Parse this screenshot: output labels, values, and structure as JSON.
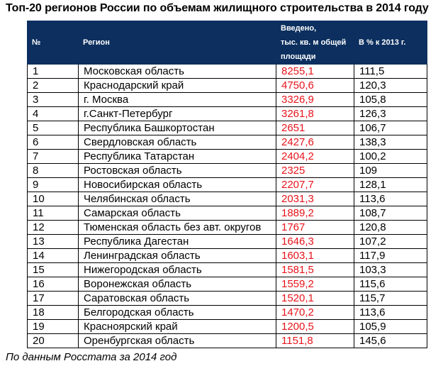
{
  "title": "Топ-20 регионов России по объемам жилищного строительства в 2014 году",
  "note": "По данным Росстата за 2014 год",
  "colors": {
    "header_bg": "#0c2f5f",
    "header_text": "#ffffff",
    "value_text": "#e8141b"
  },
  "chart_data": {
    "type": "table",
    "title": "Топ-20 регионов России по объемам жилищного строительства в 2014 году",
    "columns": [
      "№",
      "Регион",
      "Введено, тыс. кв. м общей площади",
      "В % к 2013 г."
    ],
    "header_lines": {
      "c2": [
        "Введено,",
        "тыс. кв. м общей",
        "площади"
      ]
    },
    "rows": [
      [
        "1",
        "Московская область",
        "8255,1",
        "111,5"
      ],
      [
        "2",
        "Краснодарский край",
        "4750,6",
        "120,3"
      ],
      [
        "3",
        "г. Москва",
        "3326,9",
        "105,8"
      ],
      [
        "4",
        "г.Санкт-Петербург",
        "3261,8",
        "126,3"
      ],
      [
        "5",
        "Республика Башкортостан",
        "2651",
        "106,7"
      ],
      [
        "6",
        "Свердловская область",
        "2427,6",
        "138,3"
      ],
      [
        "7",
        "Республика Татарстан",
        "2404,2",
        "100,2"
      ],
      [
        "8",
        "Ростовская область",
        "2325",
        "109"
      ],
      [
        "9",
        "Новосибирская область",
        "2207,7",
        "128,1"
      ],
      [
        "10",
        "Челябинская область",
        "2031,3",
        "113,6"
      ],
      [
        "11",
        "Самарская область",
        "1889,2",
        "108,7"
      ],
      [
        "12",
        "Тюменская область без авт. округов",
        "1767",
        "120,8"
      ],
      [
        "13",
        "Республика Дагестан",
        "1646,3",
        "107,2"
      ],
      [
        "14",
        "Ленинградская область",
        "1603,1",
        "117,9"
      ],
      [
        "15",
        "Нижегородская область",
        "1581,5",
        "103,3"
      ],
      [
        "16",
        "Воронежская область",
        "1559,2",
        "115,6"
      ],
      [
        "17",
        "Саратовская область",
        "1520,1",
        "115,7"
      ],
      [
        "18",
        "Белгородская область",
        "1470,2",
        "113,6"
      ],
      [
        "19",
        "Красноярский край",
        "1200,5",
        "105,9"
      ],
      [
        "20",
        "Оренбургская область",
        "1151,8",
        "145,6"
      ]
    ],
    "source": "По данным Росстата за 2014 год"
  }
}
